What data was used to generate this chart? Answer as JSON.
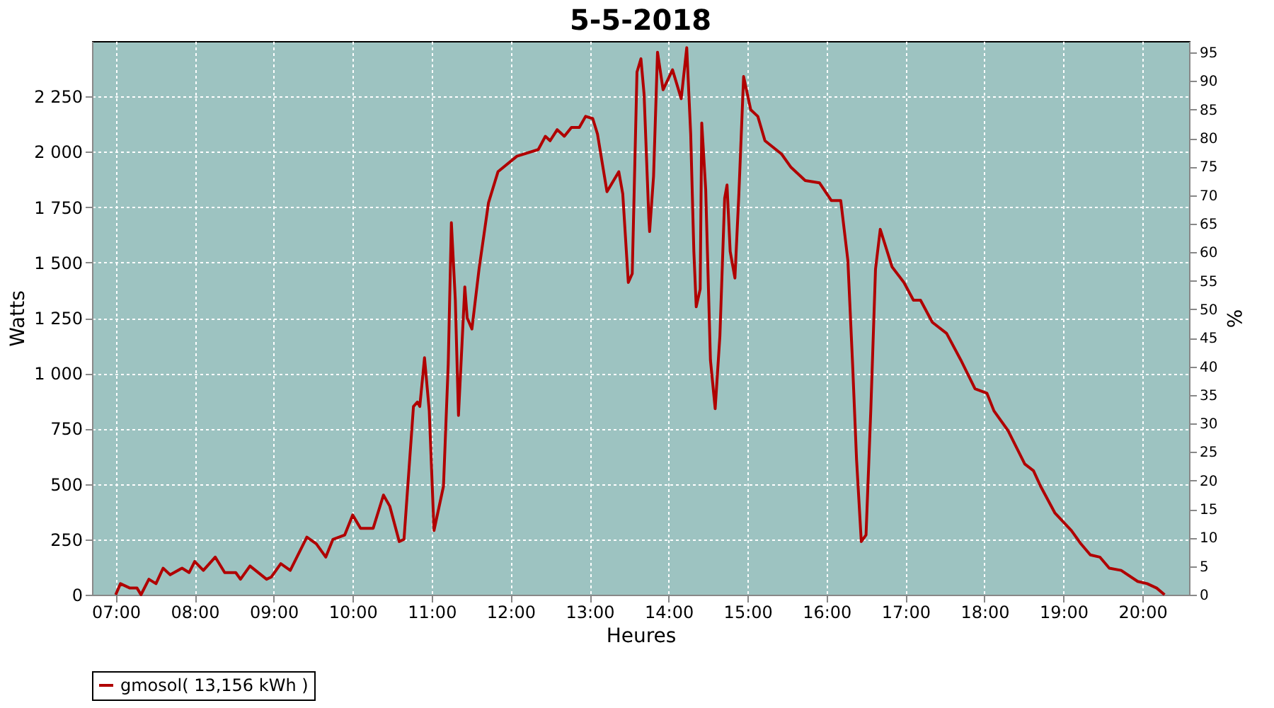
{
  "chart_data": {
    "type": "line",
    "title": "5-5-2018",
    "xlabel": "Heures",
    "ylabel": "Watts",
    "y2label": "%",
    "xlim": [
      6.7,
      20.59
    ],
    "xticks": [
      {
        "value": 7,
        "label": "07:00"
      },
      {
        "value": 8,
        "label": "08:00"
      },
      {
        "value": 9,
        "label": "09:00"
      },
      {
        "value": 10,
        "label": "10:00"
      },
      {
        "value": 11,
        "label": "11:00"
      },
      {
        "value": 12,
        "label": "12:00"
      },
      {
        "value": 13,
        "label": "13:00"
      },
      {
        "value": 14,
        "label": "14:00"
      },
      {
        "value": 15,
        "label": "15:00"
      },
      {
        "value": 16,
        "label": "16:00"
      },
      {
        "value": 17,
        "label": "17:00"
      },
      {
        "value": 18,
        "label": "18:00"
      },
      {
        "value": 19,
        "label": "19:00"
      },
      {
        "value": 20,
        "label": "20:00"
      }
    ],
    "ylim": [
      0,
      2500
    ],
    "yticks": [
      0,
      250,
      500,
      750,
      {
        "value": 1000,
        "label": "1 000"
      },
      {
        "value": 1250,
        "label": "1 250"
      },
      {
        "value": 1500,
        "label": "1 500"
      },
      {
        "value": 1750,
        "label": "1 750"
      },
      {
        "value": 2000,
        "label": "2 000"
      },
      {
        "value": 2250,
        "label": "2 250"
      }
    ],
    "y2lim": [
      0,
      97
    ],
    "y2ticks": [
      0,
      5,
      10,
      15,
      20,
      25,
      30,
      35,
      40,
      45,
      50,
      55,
      60,
      65,
      70,
      75,
      80,
      85,
      90,
      95
    ],
    "grid": true,
    "legend": "bottom",
    "marker": "none",
    "line_style": "solid",
    "series": [
      {
        "name": "gmosol( 13,156 kWh )",
        "color": "#b00000",
        "x": [
          7.0,
          7.06,
          7.18,
          7.27,
          7.32,
          7.42,
          7.51,
          7.6,
          7.69,
          7.84,
          7.93,
          8.0,
          8.11,
          8.26,
          8.38,
          8.52,
          8.58,
          8.7,
          8.91,
          8.97,
          9.09,
          9.21,
          9.42,
          9.54,
          9.66,
          9.75,
          9.9,
          10.0,
          10.1,
          10.26,
          10.39,
          10.47,
          10.59,
          10.65,
          10.77,
          10.82,
          10.85,
          10.91,
          10.97,
          11.03,
          11.15,
          11.21,
          11.25,
          11.3,
          11.34,
          11.42,
          11.45,
          11.51,
          11.6,
          11.72,
          11.84,
          12.08,
          12.35,
          12.44,
          12.5,
          12.59,
          12.68,
          12.77,
          12.87,
          12.95,
          13.04,
          13.1,
          13.22,
          13.37,
          13.42,
          13.49,
          13.54,
          13.6,
          13.65,
          13.69,
          13.75,
          13.76,
          13.81,
          13.86,
          13.93,
          14.05,
          14.16,
          14.23,
          14.28,
          14.32,
          14.35,
          14.4,
          14.42,
          14.47,
          14.53,
          14.59,
          14.65,
          14.71,
          14.74,
          14.78,
          14.84,
          14.89,
          14.95,
          15.04,
          15.13,
          15.22,
          15.43,
          15.55,
          15.73,
          15.91,
          16.06,
          16.18,
          16.27,
          16.33,
          16.38,
          16.44,
          16.5,
          16.56,
          16.62,
          16.68,
          16.83,
          16.98,
          17.1,
          17.19,
          17.34,
          17.52,
          17.7,
          17.88,
          18.03,
          18.12,
          18.3,
          18.51,
          18.62,
          18.71,
          18.89,
          19.1,
          19.22,
          19.34,
          19.46,
          19.58,
          19.73,
          19.94,
          20.06,
          20.18,
          20.28
        ],
        "values": [
          0,
          50,
          30,
          30,
          0,
          70,
          50,
          120,
          90,
          120,
          100,
          150,
          110,
          170,
          100,
          100,
          70,
          130,
          70,
          80,
          140,
          110,
          260,
          230,
          170,
          250,
          270,
          360,
          300,
          300,
          450,
          400,
          240,
          250,
          850,
          870,
          850,
          1070,
          830,
          290,
          490,
          1040,
          1680,
          1330,
          810,
          1390,
          1250,
          1200,
          1470,
          1770,
          1910,
          1980,
          2010,
          2070,
          2050,
          2100,
          2070,
          2110,
          2110,
          2160,
          2150,
          2080,
          1820,
          1910,
          1810,
          1410,
          1450,
          2360,
          2420,
          2260,
          1700,
          1640,
          1890,
          2450,
          2280,
          2370,
          2240,
          2470,
          2080,
          1550,
          1300,
          1380,
          2130,
          1830,
          1060,
          840,
          1170,
          1790,
          1850,
          1550,
          1430,
          1810,
          2340,
          2190,
          2160,
          2050,
          1990,
          1930,
          1870,
          1860,
          1780,
          1780,
          1510,
          1040,
          610,
          240,
          270,
          830,
          1470,
          1650,
          1480,
          1410,
          1330,
          1330,
          1230,
          1180,
          1060,
          930,
          910,
          830,
          740,
          590,
          560,
          490,
          370,
          290,
          230,
          180,
          170,
          120,
          110,
          60,
          50,
          30,
          0
        ]
      }
    ]
  }
}
